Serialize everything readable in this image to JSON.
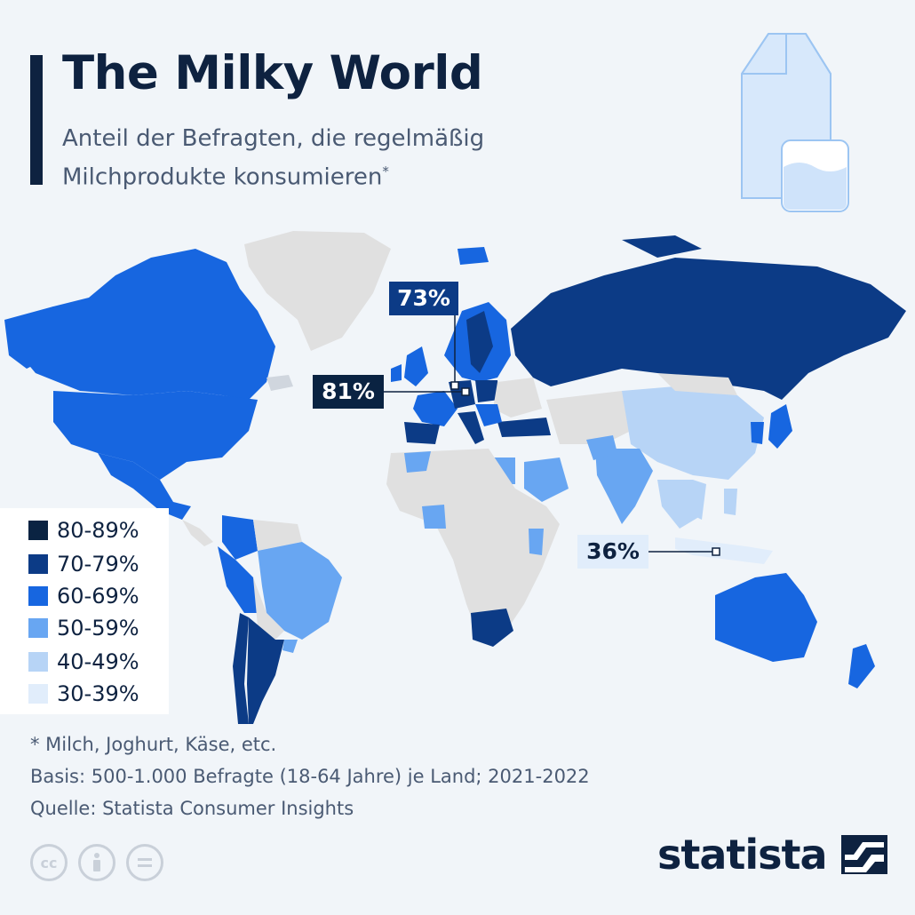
{
  "header": {
    "title": "The Milky World",
    "subtitle_line1": "Anteil der Befragten, die regelmäßig",
    "subtitle_line2": "Milchprodukte konsumieren",
    "subtitle_mark": "*"
  },
  "legend": {
    "items": [
      {
        "label": "80-89%",
        "color": "#0a2342"
      },
      {
        "label": "70-79%",
        "color": "#0c3b86"
      },
      {
        "label": "60-69%",
        "color": "#1766e0"
      },
      {
        "label": "50-59%",
        "color": "#68a6f2"
      },
      {
        "label": "40-49%",
        "color": "#b7d4f6"
      },
      {
        "label": "30-39%",
        "color": "#e1edfb"
      }
    ]
  },
  "callouts": {
    "a": "73%",
    "b": "81%",
    "c": "36%"
  },
  "footer": {
    "note": "* Milch, Joghurt, Käse, etc.",
    "basis": "Basis: 500-1.000 Befragte (18-64 Jahre) je Land; 2021-2022",
    "source": "Quelle: Statista Consumer Insights",
    "brand": "statista"
  },
  "icons": [
    "milk-carton-icon",
    "glass-icon",
    "cc-icon",
    "by-icon",
    "nd-icon",
    "statista-logo-icon"
  ],
  "colors": {
    "no_data": "#e0e0e0",
    "background": "#f1f5f9",
    "text_dark": "#0e2240"
  }
}
